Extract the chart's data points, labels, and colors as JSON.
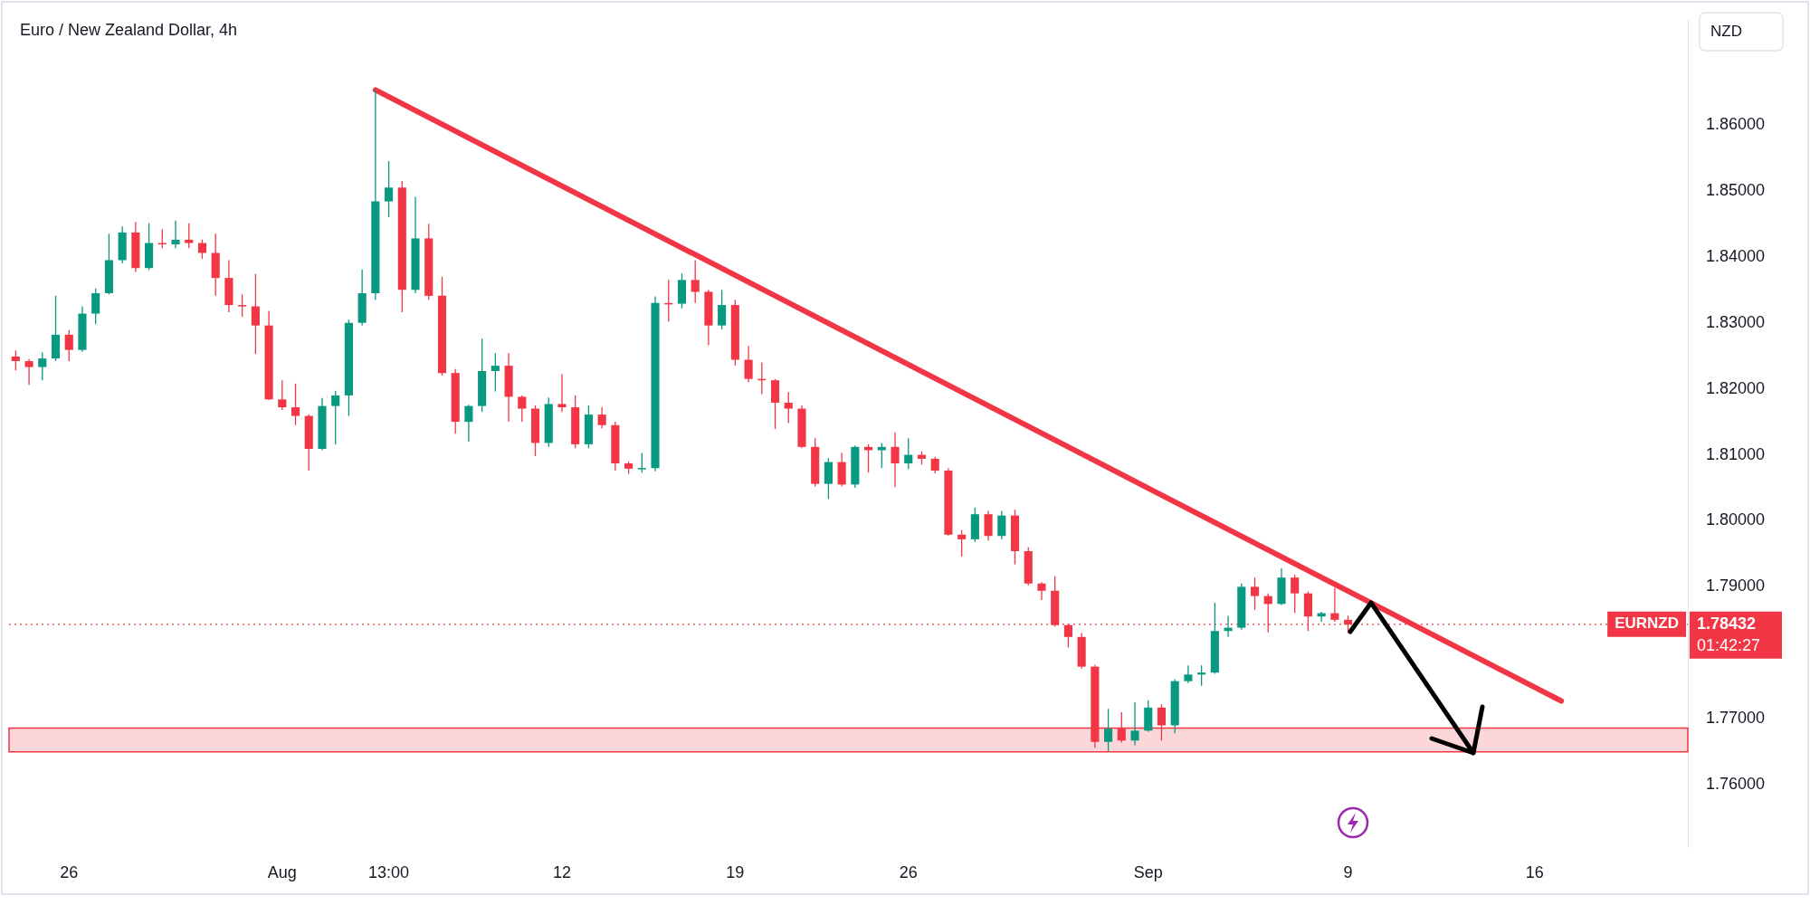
{
  "chart_data": {
    "type": "candlestick",
    "title": "Euro / New Zealand Dollar, 4h",
    "ylabel": "NZD",
    "categories": [
      null,
      null,
      null,
      null,
      "26",
      null,
      null,
      null,
      null,
      null,
      null,
      null,
      null,
      null,
      null,
      null,
      null,
      null,
      null,
      null,
      "Aug",
      null,
      null,
      null,
      null,
      null,
      null,
      null,
      "13:00",
      null,
      null,
      null,
      null,
      null,
      null,
      null,
      null,
      null,
      null,
      null,
      null,
      "12",
      null,
      null,
      null,
      null,
      null,
      null,
      null,
      null,
      null,
      null,
      null,
      null,
      "19",
      null,
      null,
      null,
      null,
      null,
      null,
      null,
      null,
      null,
      null,
      null,
      null,
      "26",
      null,
      null,
      null,
      null,
      null,
      null,
      null,
      null,
      null,
      null,
      null,
      null,
      null,
      null,
      null,
      null,
      null,
      "Sep",
      null,
      null,
      null,
      null,
      null,
      null,
      null,
      null,
      null,
      null,
      null,
      null,
      null,
      null,
      "9",
      null,
      null,
      null,
      null,
      null,
      null,
      null,
      null,
      null,
      null,
      null,
      null,
      null,
      "16",
      null,
      null,
      null,
      null,
      null,
      null,
      null,
      null,
      null,
      null,
      null
    ],
    "ohlc": [
      [
        1.8249,
        1.8258,
        1.8228,
        1.8242
      ],
      [
        1.8242,
        1.8245,
        1.8206,
        1.8233
      ],
      [
        1.8233,
        1.8255,
        1.8213,
        1.8246
      ],
      [
        1.8246,
        1.8341,
        1.8242,
        1.8282
      ],
      [
        1.8282,
        1.8289,
        1.8242,
        1.8259
      ],
      [
        1.8259,
        1.8325,
        1.8256,
        1.8314
      ],
      [
        1.8314,
        1.8352,
        1.8298,
        1.8345
      ],
      [
        1.8345,
        1.8435,
        1.8343,
        1.8395
      ],
      [
        1.8395,
        1.8446,
        1.839,
        1.8437
      ],
      [
        1.8437,
        1.8453,
        1.8377,
        1.8383
      ],
      [
        1.8383,
        1.8451,
        1.838,
        1.8421
      ],
      [
        1.8421,
        1.8442,
        1.8413,
        1.8419
      ],
      [
        1.8419,
        1.8455,
        1.8413,
        1.8426
      ],
      [
        1.8426,
        1.8451,
        1.8413,
        1.8421
      ],
      [
        1.8421,
        1.8426,
        1.8397,
        1.8406
      ],
      [
        1.8406,
        1.8435,
        1.8341,
        1.8368
      ],
      [
        1.8368,
        1.8395,
        1.8316,
        1.8327
      ],
      [
        1.8327,
        1.8343,
        1.8309,
        1.8325
      ],
      [
        1.8325,
        1.8374,
        1.8253,
        1.8296
      ],
      [
        1.8296,
        1.8318,
        1.8183,
        1.8184
      ],
      [
        1.8184,
        1.8213,
        1.8168,
        1.8172
      ],
      [
        1.8172,
        1.8208,
        1.8145,
        1.8159
      ],
      [
        1.8159,
        1.8161,
        1.8076,
        1.8109
      ],
      [
        1.8109,
        1.8186,
        1.8107,
        1.8174
      ],
      [
        1.8174,
        1.8197,
        1.8116,
        1.819
      ],
      [
        1.819,
        1.8305,
        1.8159,
        1.83
      ],
      [
        1.83,
        1.8381,
        1.8296,
        1.8345
      ],
      [
        1.8345,
        1.8653,
        1.8335,
        1.8484
      ],
      [
        1.8484,
        1.8545,
        1.846,
        1.8505
      ],
      [
        1.8505,
        1.8515,
        1.8316,
        1.835
      ],
      [
        1.835,
        1.8491,
        1.8345,
        1.8428
      ],
      [
        1.8428,
        1.845,
        1.8335,
        1.8341
      ],
      [
        1.8341,
        1.837,
        1.822,
        1.8224
      ],
      [
        1.8224,
        1.823,
        1.8132,
        1.815
      ],
      [
        1.815,
        1.8176,
        1.812,
        1.8174
      ],
      [
        1.8174,
        1.8276,
        1.8165,
        1.8227
      ],
      [
        1.8227,
        1.8254,
        1.8196,
        1.8235
      ],
      [
        1.8235,
        1.8254,
        1.815,
        1.8188
      ],
      [
        1.8188,
        1.819,
        1.815,
        1.817
      ],
      [
        1.817,
        1.8175,
        1.8098,
        1.8118
      ],
      [
        1.8118,
        1.8187,
        1.8112,
        1.8177
      ],
      [
        1.8177,
        1.8222,
        1.8165,
        1.8172
      ],
      [
        1.8172,
        1.819,
        1.811,
        1.8116
      ],
      [
        1.8116,
        1.8175,
        1.811,
        1.8161
      ],
      [
        1.8161,
        1.8172,
        1.814,
        1.8145
      ],
      [
        1.8145,
        1.815,
        1.8076,
        1.8087
      ],
      [
        1.8087,
        1.809,
        1.8071,
        1.8079
      ],
      [
        1.8079,
        1.8103,
        1.8073,
        1.808
      ],
      [
        1.808,
        1.834,
        1.8075,
        1.833
      ],
      [
        1.833,
        1.8365,
        1.8302,
        1.8329
      ],
      [
        1.8329,
        1.8375,
        1.8322,
        1.8365
      ],
      [
        1.8365,
        1.8395,
        1.833,
        1.8347
      ],
      [
        1.8347,
        1.835,
        1.8266,
        1.8296
      ],
      [
        1.8296,
        1.835,
        1.829,
        1.8327
      ],
      [
        1.8327,
        1.8335,
        1.8235,
        1.8244
      ],
      [
        1.8244,
        1.8265,
        1.821,
        1.8215
      ],
      [
        1.8215,
        1.824,
        1.8192,
        1.8213
      ],
      [
        1.8213,
        1.8215,
        1.8139,
        1.8179
      ],
      [
        1.8179,
        1.8195,
        1.8148,
        1.817
      ],
      [
        1.817,
        1.8175,
        1.811,
        1.8112
      ],
      [
        1.8112,
        1.8125,
        1.8052,
        1.8056
      ],
      [
        1.8056,
        1.8095,
        1.8033,
        1.8089
      ],
      [
        1.8089,
        1.8103,
        1.8052,
        1.8055
      ],
      [
        1.8055,
        1.8114,
        1.805,
        1.8112
      ],
      [
        1.8112,
        1.8116,
        1.8073,
        1.8107
      ],
      [
        1.8107,
        1.8118,
        1.808,
        1.8112
      ],
      [
        1.8112,
        1.8134,
        1.8051,
        1.8087
      ],
      [
        1.8087,
        1.8125,
        1.8078,
        1.81
      ],
      [
        1.81,
        1.8105,
        1.8085,
        1.8094
      ],
      [
        1.8094,
        1.8097,
        1.8072,
        1.8076
      ],
      [
        1.8076,
        1.808,
        1.7977,
        1.7979
      ],
      [
        1.7979,
        1.7986,
        1.7946,
        1.7972
      ],
      [
        1.7972,
        1.802,
        1.7968,
        1.801
      ],
      [
        1.801,
        1.8015,
        1.797,
        1.7977
      ],
      [
        1.7977,
        1.8015,
        1.7972,
        1.8008
      ],
      [
        1.8008,
        1.8017,
        1.7934,
        1.7954
      ],
      [
        1.7954,
        1.796,
        1.7902,
        1.7905
      ],
      [
        1.7905,
        1.7907,
        1.788,
        1.7894
      ],
      [
        1.7894,
        1.7916,
        1.784,
        1.7842
      ],
      [
        1.7842,
        1.7844,
        1.7808,
        1.7824
      ],
      [
        1.7824,
        1.783,
        1.7776,
        1.7779
      ],
      [
        1.7779,
        1.7782,
        1.7656,
        1.7665
      ],
      [
        1.7665,
        1.7715,
        1.7651,
        1.7685
      ],
      [
        1.7685,
        1.771,
        1.7664,
        1.7667
      ],
      [
        1.7667,
        1.7725,
        1.766,
        1.7682
      ],
      [
        1.7682,
        1.7728,
        1.768,
        1.7717
      ],
      [
        1.7717,
        1.7722,
        1.7667,
        1.769
      ],
      [
        1.769,
        1.776,
        1.7678,
        1.7757
      ],
      [
        1.7757,
        1.7781,
        1.7754,
        1.7767
      ],
      [
        1.7767,
        1.7781,
        1.775,
        1.777
      ],
      [
        1.777,
        1.7876,
        1.7768,
        1.7833
      ],
      [
        1.7833,
        1.7856,
        1.7824,
        1.7838
      ],
      [
        1.7838,
        1.7905,
        1.7835,
        1.79
      ],
      [
        1.79,
        1.7914,
        1.7865,
        1.7886
      ],
      [
        1.7886,
        1.789,
        1.7831,
        1.7874
      ],
      [
        1.7874,
        1.7928,
        1.7872,
        1.7914
      ],
      [
        1.7914,
        1.7918,
        1.786,
        1.789
      ],
      [
        1.789,
        1.7893,
        1.7833,
        1.7855
      ],
      [
        1.7855,
        1.7862,
        1.7847,
        1.786
      ],
      [
        1.786,
        1.7898,
        1.7847,
        1.785
      ],
      [
        1.785,
        1.7856,
        1.783,
        1.7843
      ],
      null,
      null,
      null,
      null,
      null,
      null,
      null,
      null,
      null,
      null,
      null,
      null,
      null,
      null,
      null,
      null,
      null,
      null,
      null,
      null,
      null,
      null,
      null,
      null,
      null
    ],
    "colors": [
      "#f23645",
      "#f23645",
      "#089981",
      "#089981",
      "#f23645",
      "#089981",
      "#089981",
      "#089981",
      "#089981",
      "#f23645",
      "#089981",
      "#f23645",
      "#089981",
      "#f23645",
      "#f23645",
      "#f23645",
      "#f23645",
      "#f23645",
      "#f23645",
      "#f23645",
      "#f23645",
      "#f23645",
      "#f23645",
      "#089981",
      "#089981",
      "#089981",
      "#089981",
      "#089981",
      "#089981",
      "#f23645",
      "#089981",
      "#f23645",
      "#f23645",
      "#f23645",
      "#089981",
      "#089981",
      "#089981",
      "#f23645",
      "#f23645",
      "#f23645",
      "#089981",
      "#f23645",
      "#f23645",
      "#089981",
      "#f23645",
      "#f23645",
      "#f23645",
      "#089981",
      "#089981",
      "#f23645",
      "#089981",
      "#f23645",
      "#f23645",
      "#089981",
      "#f23645",
      "#f23645",
      "#f23645",
      "#f23645",
      "#f23645",
      "#f23645",
      "#f23645",
      "#089981",
      "#f23645",
      "#089981",
      "#f23645",
      "#089981",
      "#f23645",
      "#089981",
      "#f23645",
      "#f23645",
      "#f23645",
      "#f23645",
      "#089981",
      "#f23645",
      "#089981",
      "#f23645",
      "#f23645",
      "#f23645",
      "#f23645",
      "#f23645",
      "#f23645",
      "#f23645",
      "#089981",
      "#f23645",
      "#089981",
      "#089981",
      "#f23645",
      "#089981",
      "#089981",
      "#089981",
      "#089981",
      "#089981",
      "#089981",
      "#f23645",
      "#f23645",
      "#089981",
      "#f23645",
      "#f23645",
      "#089981",
      "#f23645",
      "#f23645",
      null,
      null,
      null,
      null,
      null,
      null,
      null,
      null,
      null,
      null,
      null,
      null,
      null,
      null,
      null,
      null,
      null,
      null,
      null,
      null,
      null,
      null,
      null,
      null,
      null
    ],
    "series": [
      {
        "type": "line",
        "color": "#f23645",
        "values": [
          null,
          null,
          null,
          null,
          null,
          null,
          null,
          null,
          null,
          null,
          null,
          null,
          null,
          null,
          null,
          null,
          null,
          null,
          null,
          null,
          null,
          null,
          null,
          null,
          null,
          null,
          null,
          1.8653,
          null,
          null,
          null,
          null,
          null,
          null,
          null,
          null,
          null,
          null,
          null,
          null,
          null,
          null,
          null,
          null,
          null,
          null,
          null,
          null,
          null,
          null,
          null,
          null,
          null,
          null,
          null,
          null,
          null,
          null,
          null,
          null,
          null,
          null,
          null,
          null,
          null,
          null,
          null,
          null,
          null,
          null,
          null,
          null,
          null,
          null,
          null,
          null,
          null,
          null,
          null,
          null,
          null,
          null,
          null,
          null,
          null,
          null,
          null,
          null,
          null,
          null,
          null,
          null,
          null,
          null,
          null,
          null,
          null,
          null,
          null,
          null,
          null,
          null,
          null,
          null,
          null,
          null,
          null,
          null,
          null,
          null,
          null,
          null,
          null,
          null,
          null,
          null,
          1.7727,
          null,
          null,
          null,
          null,
          null,
          null,
          null,
          null,
          null
        ]
      }
    ],
    "ylim": [
      1.7505,
      1.8758
    ],
    "yticks": [
      {
        "value": 1.76,
        "label": "1.76000"
      },
      {
        "value": 1.77,
        "label": "1.77000"
      },
      {
        "value": 1.79,
        "label": "1.79000"
      },
      {
        "value": 1.8,
        "label": "1.80000"
      },
      {
        "value": 1.81,
        "label": "1.81000"
      },
      {
        "value": 1.82,
        "label": "1.82000"
      },
      {
        "value": 1.83,
        "label": "1.83000"
      },
      {
        "value": 1.84,
        "label": "1.84000"
      },
      {
        "value": 1.85,
        "label": "1.85000"
      },
      {
        "value": 1.86,
        "label": "1.86000"
      }
    ],
    "ref_lines": [
      {
        "axis": "y",
        "value": 1.78432,
        "label": "1.78432",
        "color": "#f23645",
        "line_style": "dotted"
      }
    ],
    "bands": [
      {
        "axis": "y",
        "from": 1.765,
        "to": 1.7686,
        "color": "#f23645"
      }
    ],
    "annotations": [
      "EURNZD",
      "01:42:27"
    ]
  }
}
